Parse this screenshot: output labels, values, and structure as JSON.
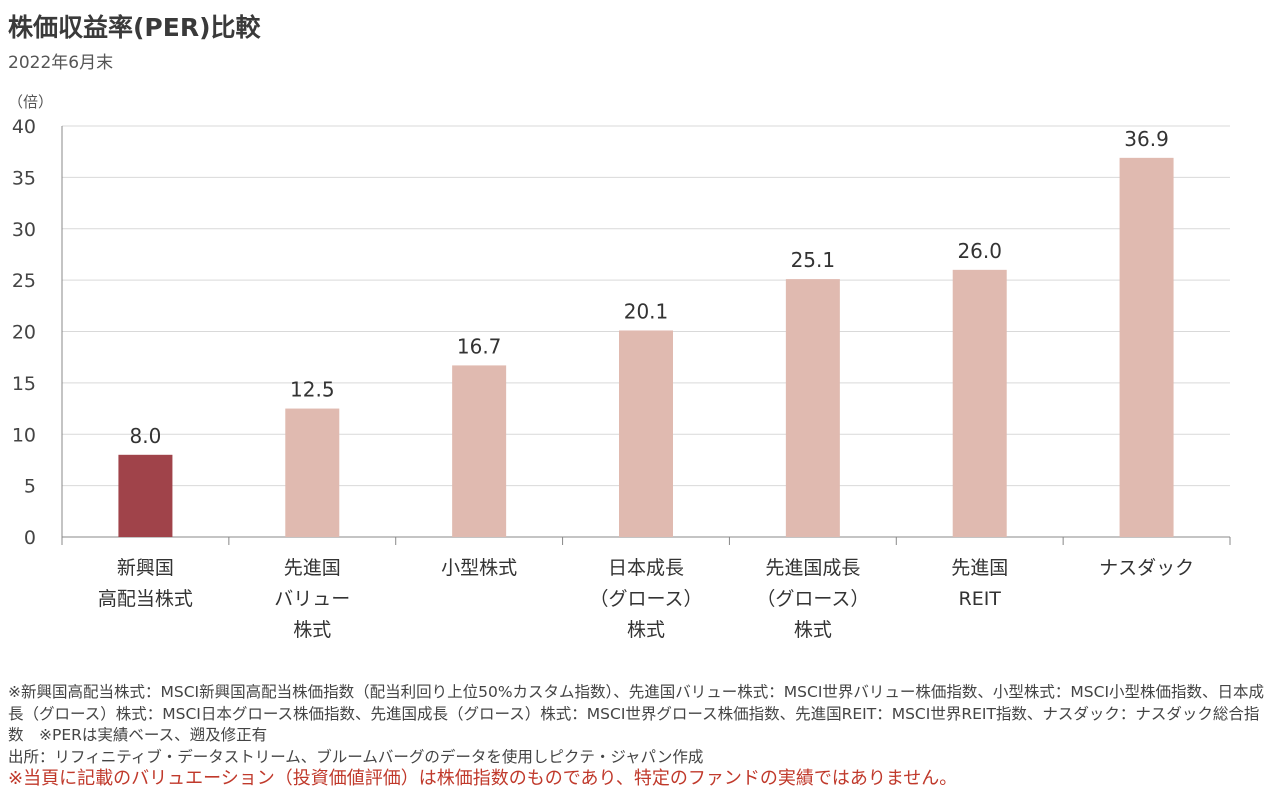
{
  "title": "株価収益率(PER)比較",
  "subtitle": "2022年6月末",
  "chart_data": {
    "type": "bar",
    "unit_label": "（倍）",
    "categories": [
      [
        "新興国",
        "高配当株式"
      ],
      [
        "先進国",
        "バリュー",
        "株式"
      ],
      [
        "小型株式"
      ],
      [
        "日本成長",
        "（グロース）",
        "株式"
      ],
      [
        "先進国成長",
        "（グロース）",
        "株式"
      ],
      [
        "先進国",
        "REIT"
      ],
      [
        "ナスダック"
      ]
    ],
    "values": [
      8.0,
      12.5,
      16.7,
      20.1,
      25.1,
      26.0,
      36.9
    ],
    "data_labels": [
      "8.0",
      "12.5",
      "16.7",
      "20.1",
      "25.1",
      "26.0",
      "36.9"
    ],
    "highlight_index": 0,
    "ylim": [
      0,
      40
    ],
    "yticks": [
      0,
      5,
      10,
      15,
      20,
      25,
      30,
      35,
      40
    ],
    "grid": true,
    "colors": {
      "highlight": "#a0434a",
      "default": "#e0bab0",
      "grid": "#d9d9d9",
      "axis": "#888888"
    }
  },
  "notes": {
    "source_line1": "※新興国高配当株式：MSCI新興国高配当株価指数（配当利回り上位50%カスタム指数）、先進国バリュー株式：MSCI世界バリュー株価指数、小型株式：MSCI小型株価指数、日本成長（グロース）株式：MSCI日本グロース株価指数、先進国成長（グロース）株式：MSCI世界グロース株価指数、先進国REIT：MSCI世界REIT指数、ナスダック：ナスダック総合指数　※PERは実績ベース、遡及修正有",
    "source_line2": "出所：リフィニティブ・データストリーム、ブルームバーグのデータを使用しピクテ・ジャパン作成",
    "disclaimer": "※当頁に記載のバリュエーション（投資価値評価）は株価指数のものであり、特定のファンドの実績ではありません。"
  }
}
